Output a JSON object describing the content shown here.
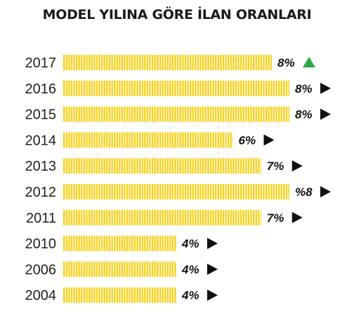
{
  "chart_data": {
    "type": "bar",
    "orientation": "horizontal",
    "title": "MODEL YILINA GÖRE İLAN ORANLARI",
    "categories": [
      "2017",
      "2016",
      "2015",
      "2014",
      "2013",
      "2012",
      "2011",
      "2010",
      "2006",
      "2004"
    ],
    "values": [
      8,
      8,
      8,
      6,
      7,
      8,
      7,
      4,
      4,
      4
    ],
    "value_labels": [
      "8%",
      "8%",
      "8%",
      "6%",
      "7%",
      "%8",
      "7%",
      "4%",
      "4%",
      "4%"
    ],
    "trend": [
      "up",
      "right",
      "right",
      "right",
      "right",
      "right",
      "right",
      "right",
      "right",
      "right"
    ],
    "unit": "%",
    "xlim": [
      0,
      9.4
    ],
    "grid": false,
    "colors": {
      "bar": "#f6d21d",
      "trend_up": "#2fa94a",
      "trend_neutral": "#111111"
    }
  }
}
